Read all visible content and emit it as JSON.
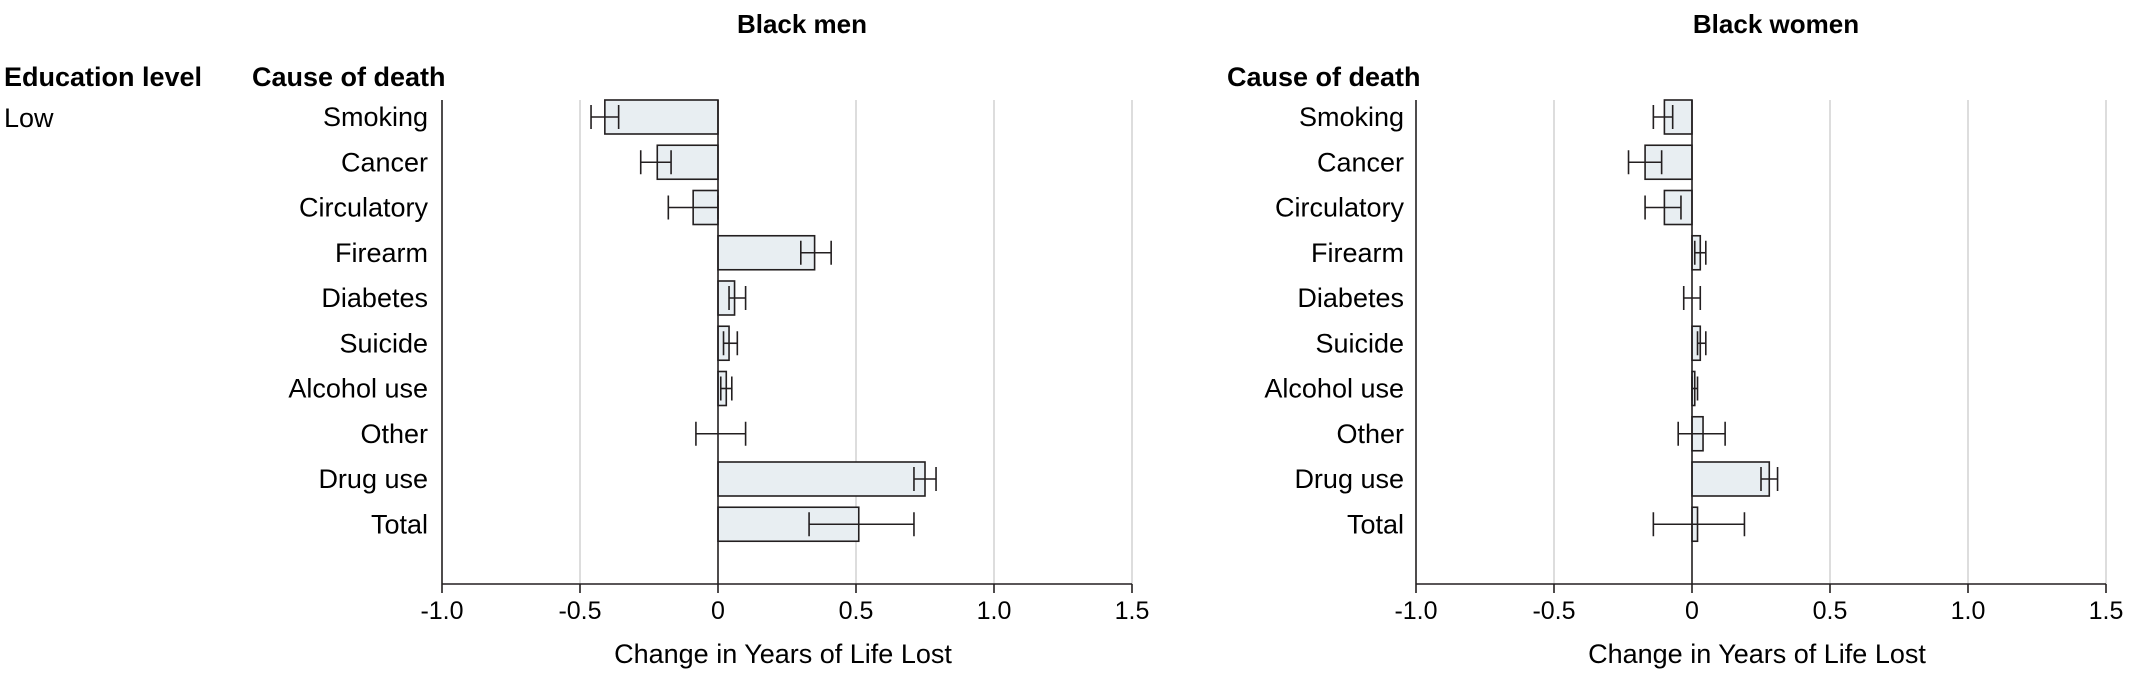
{
  "education_header": "Education level",
  "education_value": "Low",
  "chart_data": [
    {
      "type": "bar",
      "orientation": "horizontal",
      "title": "Black men",
      "category_header": "Cause of death",
      "xlabel": "Change in Years of Life Lost",
      "xlim": [
        -1.0,
        1.5
      ],
      "xticks": [
        -1.0,
        -0.5,
        0,
        0.5,
        1.0,
        1.5
      ],
      "xtick_labels": [
        "-1.0",
        "-0.5",
        "0",
        "0.5",
        "1.0",
        "1.5"
      ],
      "grid": true,
      "categories": [
        "Smoking",
        "Cancer",
        "Circulatory",
        "Firearm",
        "Diabetes",
        "Suicide",
        "Alcohol use",
        "Other",
        "Drug use",
        "Total"
      ],
      "values": [
        -0.41,
        -0.22,
        -0.09,
        0.35,
        0.06,
        0.04,
        0.03,
        0.0,
        0.75,
        0.51
      ],
      "ci_low": [
        -0.46,
        -0.28,
        -0.18,
        0.3,
        0.04,
        0.02,
        0.01,
        -0.08,
        0.71,
        0.33
      ],
      "ci_high": [
        -0.36,
        -0.17,
        0.0,
        0.41,
        0.1,
        0.07,
        0.05,
        0.1,
        0.79,
        0.71
      ]
    },
    {
      "type": "bar",
      "orientation": "horizontal",
      "title": "Black women",
      "category_header": "Cause of death",
      "xlabel": "Change in Years of Life Lost",
      "xlim": [
        -1.0,
        1.5
      ],
      "xticks": [
        -1.0,
        -0.5,
        0,
        0.5,
        1.0,
        1.5
      ],
      "xtick_labels": [
        "-1.0",
        "-0.5",
        "0",
        "0.5",
        "1.0",
        "1.5"
      ],
      "grid": true,
      "categories": [
        "Smoking",
        "Cancer",
        "Circulatory",
        "Firearm",
        "Diabetes",
        "Suicide",
        "Alcohol use",
        "Other",
        "Drug use",
        "Total"
      ],
      "values": [
        -0.1,
        -0.17,
        -0.1,
        0.03,
        0.0,
        0.03,
        0.01,
        0.04,
        0.28,
        0.02
      ],
      "ci_low": [
        -0.14,
        -0.23,
        -0.17,
        0.01,
        -0.03,
        0.02,
        0.0,
        -0.05,
        0.25,
        -0.14
      ],
      "ci_high": [
        -0.07,
        -0.11,
        -0.04,
        0.05,
        0.03,
        0.05,
        0.02,
        0.12,
        0.31,
        0.19
      ]
    }
  ]
}
